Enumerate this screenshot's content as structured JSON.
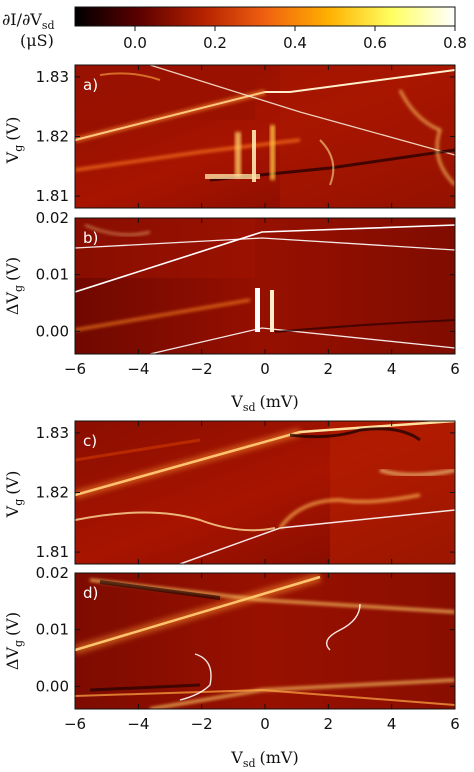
{
  "colorbar": {
    "label_line1": "∂I/∂V",
    "label_line1_sub": "sd",
    "label_line2": "(μS)",
    "ticks": [
      "0.0",
      "0.2",
      "0.4",
      "0.6",
      "0.8"
    ],
    "tick_values": [
      0.0,
      0.2,
      0.4,
      0.6,
      0.8
    ],
    "range": [
      -0.15,
      0.8
    ],
    "colormap": [
      "#000000",
      "#5a0000",
      "#b32000",
      "#f06010",
      "#ffb000",
      "#ffff60",
      "#ffffff"
    ]
  },
  "chart_data": [
    {
      "type": "heatmap",
      "panel_label": "a)",
      "ylabel": "V",
      "ylabel_sub": "g",
      "ylabel_unit": "(V)",
      "xlim": [
        -6,
        6
      ],
      "ylim": [
        1.808,
        1.832
      ],
      "xticks": [
        "−6",
        "−4",
        "−2",
        "0",
        "2",
        "4",
        "6"
      ],
      "yticks": [
        "1.81",
        "1.82",
        "1.83"
      ],
      "ytick_values": [
        1.81,
        1.82,
        1.83
      ],
      "show_xticklabels": false
    },
    {
      "type": "heatmap",
      "panel_label": "b)",
      "ylabel": "ΔV",
      "ylabel_sub": "g",
      "ylabel_unit": "(V)",
      "xlim": [
        -6,
        6
      ],
      "ylim": [
        -0.004,
        0.02
      ],
      "xticks": [
        "−6",
        "−4",
        "−2",
        "0",
        "2",
        "4",
        "6"
      ],
      "yticks": [
        "0.00",
        "0.01",
        "0.02"
      ],
      "ytick_values": [
        0.0,
        0.01,
        0.02
      ],
      "show_xticklabels": true,
      "xlabel": "V",
      "xlabel_sub": "sd",
      "xlabel_unit": "(mV)"
    },
    {
      "type": "heatmap",
      "panel_label": "c)",
      "ylabel": "V",
      "ylabel_sub": "g",
      "ylabel_unit": "(V)",
      "xlim": [
        -6,
        6
      ],
      "ylim": [
        1.808,
        1.832
      ],
      "xticks": [
        "−6",
        "−4",
        "−2",
        "0",
        "2",
        "4",
        "6"
      ],
      "yticks": [
        "1.81",
        "1.82",
        "1.83"
      ],
      "ytick_values": [
        1.81,
        1.82,
        1.83
      ],
      "show_xticklabels": false
    },
    {
      "type": "heatmap",
      "panel_label": "d)",
      "ylabel": "ΔV",
      "ylabel_sub": "g",
      "ylabel_unit": "(V)",
      "xlim": [
        -6,
        6
      ],
      "ylim": [
        -0.004,
        0.02
      ],
      "xticks": [
        "−6",
        "−4",
        "−2",
        "0",
        "2",
        "4",
        "6"
      ],
      "yticks": [
        "0.00",
        "0.01",
        "0.02"
      ],
      "ytick_values": [
        0.0,
        0.01,
        0.02
      ],
      "show_xticklabels": true,
      "xlabel": "V",
      "xlabel_sub": "sd",
      "xlabel_unit": "(mV)"
    }
  ]
}
